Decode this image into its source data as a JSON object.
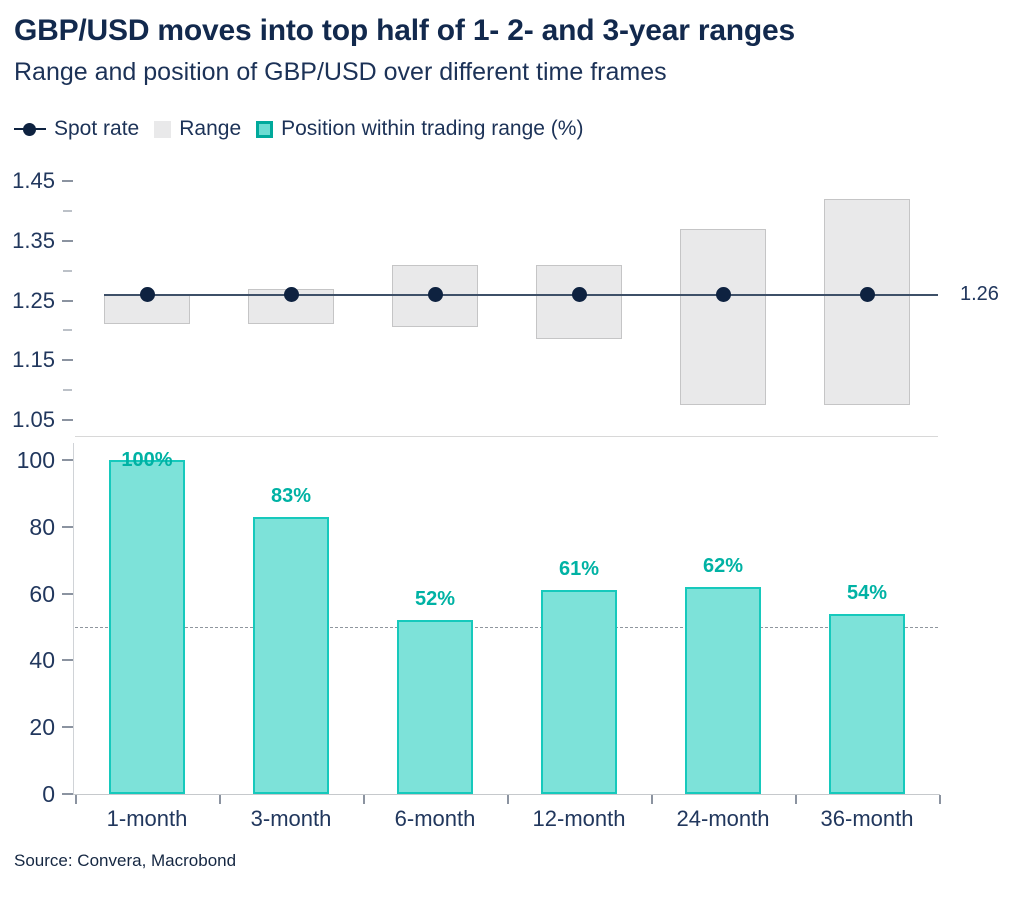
{
  "header": {
    "title": "GBP/USD moves into top half of 1- 2- and 3-year ranges",
    "subtitle": "Range and position of GBP/USD over different time frames"
  },
  "legend": [
    {
      "id": "spot-rate",
      "label": "Spot rate",
      "swatch": "dot-line"
    },
    {
      "id": "range",
      "label": "Range",
      "swatch": "gray-box"
    },
    {
      "id": "position",
      "label": "Position within trading range (%)",
      "swatch": "teal-box"
    }
  ],
  "source": "Source: Convera, Macrobond",
  "colors": {
    "navy_title": "#12294d",
    "navy_text": "#21375d",
    "spot_dot": "#0e2240",
    "spot_line": "#3e5068",
    "range_fill": "#e9e9ea",
    "range_border": "#c5c5c6",
    "teal_fill": "#7de2d9",
    "teal_border": "#16c9bc",
    "teal_label": "#00b2a4",
    "teal_legend_border": "#00a99b",
    "reference_line": "#8f969e"
  },
  "chart_data": [
    {
      "type": "bar",
      "panel": "top",
      "subtype": "range-and-spot",
      "categories": [
        "1-month",
        "3-month",
        "6-month",
        "12-month",
        "24-month",
        "36-month"
      ],
      "series": [
        {
          "name": "Range",
          "type": "range-bar",
          "low": [
            1.21,
            1.21,
            1.205,
            1.185,
            1.075,
            1.075
          ],
          "high": [
            1.26,
            1.27,
            1.31,
            1.31,
            1.37,
            1.42
          ]
        },
        {
          "name": "Spot rate",
          "type": "line-marker",
          "values": [
            1.26,
            1.26,
            1.26,
            1.26,
            1.26,
            1.26
          ],
          "end_label": "1.26"
        }
      ],
      "ylim": [
        1.05,
        1.45
      ],
      "yticks_major": [
        1.45,
        1.35,
        1.25,
        1.15,
        1.05
      ],
      "ytick_labels": [
        "1.45",
        "1.35",
        "1.25",
        "1.15",
        "1.05"
      ],
      "yticks_minor": [
        1.4,
        1.3,
        1.2,
        1.1
      ],
      "grid": false,
      "legend_position": "top-left"
    },
    {
      "type": "bar",
      "panel": "bottom",
      "series_name": "Position within trading range (%)",
      "categories": [
        "1-month",
        "3-month",
        "6-month",
        "12-month",
        "24-month",
        "36-month"
      ],
      "values": [
        100,
        83,
        52,
        61,
        62,
        54
      ],
      "labels": [
        "100%",
        "83%",
        "52%",
        "61%",
        "62%",
        "54%"
      ],
      "ylim": [
        0,
        100
      ],
      "yticks": [
        0,
        20,
        40,
        60,
        80,
        100
      ],
      "reference_line": 50,
      "grid": false
    }
  ]
}
